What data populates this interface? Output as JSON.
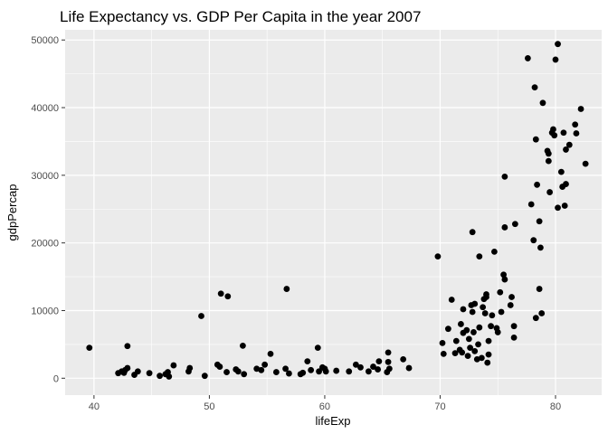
{
  "chart_data": {
    "type": "scatter",
    "title": "Life Expectancy vs. GDP Per Capita in the year 2007",
    "xlabel": "lifeExp",
    "ylabel": "gdpPercap",
    "xlim": [
      37.5,
      84
    ],
    "ylim": [
      -2500,
      51500
    ],
    "x_ticks": [
      40,
      50,
      60,
      70,
      80
    ],
    "y_ticks": [
      0,
      10000,
      20000,
      30000,
      40000,
      50000
    ],
    "x_tick_labels": [
      "40",
      "50",
      "60",
      "70",
      "80"
    ],
    "y_tick_labels": [
      "0",
      "10000",
      "20000",
      "30000",
      "40000",
      "50000"
    ],
    "grid": true,
    "panel_background": "#ebebeb",
    "grid_color": "#ffffff",
    "point_color": "#000000",
    "points": [
      [
        39.6,
        4500
      ],
      [
        42.1,
        750
      ],
      [
        42.4,
        1000
      ],
      [
        42.6,
        800
      ],
      [
        42.7,
        1200
      ],
      [
        42.9,
        4750
      ],
      [
        42.9,
        1500
      ],
      [
        43.5,
        500
      ],
      [
        43.8,
        1000
      ],
      [
        44.8,
        750
      ],
      [
        45.7,
        350
      ],
      [
        46.2,
        600
      ],
      [
        46.4,
        900
      ],
      [
        46.5,
        250
      ],
      [
        46.9,
        1900
      ],
      [
        48.2,
        1000
      ],
      [
        48.3,
        1500
      ],
      [
        49.3,
        9200
      ],
      [
        49.6,
        350
      ],
      [
        50.7,
        2000
      ],
      [
        50.9,
        1700
      ],
      [
        51.0,
        12500
      ],
      [
        51.5,
        900
      ],
      [
        51.6,
        12100
      ],
      [
        52.3,
        1300
      ],
      [
        52.5,
        1000
      ],
      [
        52.9,
        4800
      ],
      [
        53.0,
        600
      ],
      [
        54.1,
        1400
      ],
      [
        54.5,
        1200
      ],
      [
        54.8,
        2000
      ],
      [
        55.3,
        3600
      ],
      [
        55.8,
        900
      ],
      [
        56.6,
        1400
      ],
      [
        56.7,
        13200
      ],
      [
        56.9,
        700
      ],
      [
        57.9,
        600
      ],
      [
        58.1,
        800
      ],
      [
        58.5,
        2500
      ],
      [
        58.8,
        1200
      ],
      [
        59.4,
        4500
      ],
      [
        59.5,
        1000
      ],
      [
        59.8,
        1600
      ],
      [
        60.0,
        1400
      ],
      [
        60.1,
        1000
      ],
      [
        61.0,
        1100
      ],
      [
        62.1,
        1000
      ],
      [
        62.7,
        2000
      ],
      [
        63.1,
        1600
      ],
      [
        63.8,
        1000
      ],
      [
        64.2,
        1700
      ],
      [
        64.6,
        1300
      ],
      [
        64.7,
        2500
      ],
      [
        65.4,
        900
      ],
      [
        65.5,
        2400
      ],
      [
        65.5,
        3800
      ],
      [
        65.6,
        1400
      ],
      [
        66.8,
        2800
      ],
      [
        67.3,
        1500
      ],
      [
        69.8,
        18000
      ],
      [
        70.2,
        5200
      ],
      [
        70.3,
        3600
      ],
      [
        70.7,
        7300
      ],
      [
        71.0,
        11600
      ],
      [
        71.3,
        3700
      ],
      [
        71.4,
        5500
      ],
      [
        71.7,
        4200
      ],
      [
        71.8,
        8000
      ],
      [
        71.9,
        3800
      ],
      [
        72.0,
        6700
      ],
      [
        72.0,
        10200
      ],
      [
        72.3,
        7100
      ],
      [
        72.4,
        3300
      ],
      [
        72.5,
        5800
      ],
      [
        72.6,
        4500
      ],
      [
        72.7,
        10800
      ],
      [
        72.8,
        21600
      ],
      [
        72.8,
        9800
      ],
      [
        72.9,
        6800
      ],
      [
        73.0,
        11000
      ],
      [
        73.0,
        4000
      ],
      [
        73.2,
        2800
      ],
      [
        73.3,
        5000
      ],
      [
        73.4,
        7500
      ],
      [
        73.4,
        18000
      ],
      [
        73.6,
        3000
      ],
      [
        73.7,
        10500
      ],
      [
        73.8,
        11700
      ],
      [
        73.9,
        9600
      ],
      [
        74.0,
        12000
      ],
      [
        74.0,
        12400
      ],
      [
        74.1,
        2300
      ],
      [
        74.2,
        3500
      ],
      [
        74.2,
        5500
      ],
      [
        74.4,
        7700
      ],
      [
        74.5,
        9300
      ],
      [
        74.7,
        18700
      ],
      [
        74.9,
        7400
      ],
      [
        75.0,
        6800
      ],
      [
        75.2,
        12700
      ],
      [
        75.3,
        9800
      ],
      [
        75.5,
        15300
      ],
      [
        75.6,
        14600
      ],
      [
        75.6,
        22300
      ],
      [
        75.6,
        29800
      ],
      [
        76.1,
        10800
      ],
      [
        76.2,
        12000
      ],
      [
        76.4,
        7700
      ],
      [
        76.4,
        6000
      ],
      [
        76.5,
        22800
      ],
      [
        77.6,
        47300
      ],
      [
        77.9,
        25700
      ],
      [
        78.1,
        20400
      ],
      [
        78.2,
        43000
      ],
      [
        78.3,
        8900
      ],
      [
        78.3,
        35300
      ],
      [
        78.4,
        28600
      ],
      [
        78.6,
        13200
      ],
      [
        78.6,
        23200
      ],
      [
        78.7,
        19300
      ],
      [
        78.8,
        9600
      ],
      [
        78.9,
        40700
      ],
      [
        79.3,
        33600
      ],
      [
        79.4,
        32100
      ],
      [
        79.4,
        33200
      ],
      [
        79.5,
        27500
      ],
      [
        79.7,
        36300
      ],
      [
        79.8,
        36800
      ],
      [
        79.9,
        35900
      ],
      [
        80.0,
        47100
      ],
      [
        80.2,
        49400
      ],
      [
        80.2,
        25200
      ],
      [
        80.5,
        30500
      ],
      [
        80.6,
        28300
      ],
      [
        80.7,
        36300
      ],
      [
        80.8,
        25500
      ],
      [
        80.9,
        28700
      ],
      [
        80.9,
        33800
      ],
      [
        81.2,
        34500
      ],
      [
        81.7,
        37500
      ],
      [
        81.8,
        36200
      ],
      [
        82.2,
        39800
      ],
      [
        82.6,
        31700
      ]
    ]
  }
}
